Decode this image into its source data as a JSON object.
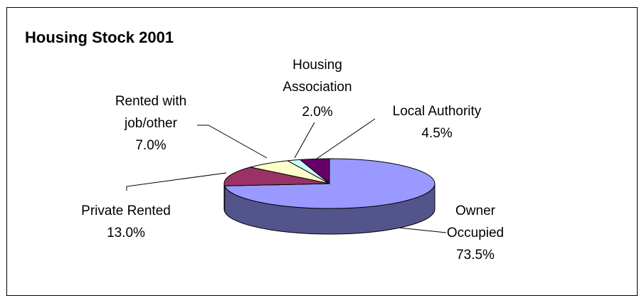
{
  "chart_data": {
    "type": "pie",
    "title": "Housing Stock 2001",
    "categories": [
      "Owner Occupied",
      "Private Rented",
      "Rented with job/other",
      "Housing Association",
      "Local Authority"
    ],
    "values": [
      73.5,
      13.0,
      7.0,
      2.0,
      4.5
    ],
    "value_labels": [
      "73.5%",
      "13.0%",
      "7.0%",
      "2.0%",
      "4.5%"
    ],
    "colors": [
      "#9999ff",
      "#993366",
      "#ffffcc",
      "#ccffff",
      "#660066"
    ]
  }
}
